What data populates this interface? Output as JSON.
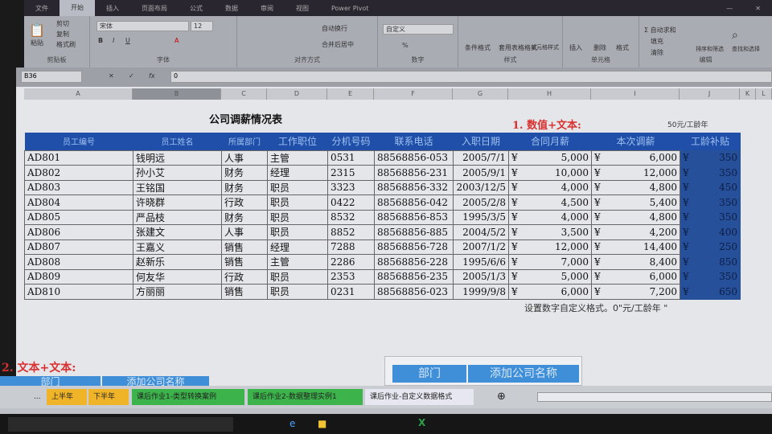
{
  "ribbon": {
    "tabs": [
      "文件",
      "开始",
      "插入",
      "页面布局",
      "公式",
      "数据",
      "审阅",
      "视图",
      "Power Pivot"
    ],
    "active_tab": "开始",
    "clipboard": {
      "paste": "粘贴",
      "cut": "剪切",
      "copy": "复制",
      "format_painter": "格式刷",
      "label": "剪贴板"
    },
    "font": {
      "name": "宋体",
      "size": "12",
      "label": "字体"
    },
    "alignment": {
      "wrap": "自动换行",
      "merge": "合并后居中",
      "label": "对齐方式"
    },
    "number": {
      "format": "自定义",
      "label": "数字"
    },
    "styles": {
      "conditional": "条件格式",
      "table": "套用表格格式",
      "cell": "单元格样式",
      "label": "样式"
    },
    "cells": {
      "insert": "插入",
      "delete": "删除",
      "format": "格式",
      "label": "单元格"
    },
    "editing": {
      "autosum": "自动求和",
      "fill": "填充",
      "clear": "清除",
      "sort": "排序和筛选",
      "find": "查找和选择",
      "label": "编辑"
    }
  },
  "formula_bar": {
    "name_box": "B36",
    "value": "0"
  },
  "columns": [
    "A",
    "B",
    "C",
    "D",
    "E",
    "F",
    "G",
    "H",
    "I",
    "J",
    "K",
    "L"
  ],
  "sheet": {
    "title": "公司调薪情况表",
    "note1": "1. 数值+文本:",
    "note_unit": "50元/工龄年",
    "headers": [
      "员工编号",
      "员工姓名",
      "所属部门",
      "工作职位",
      "分机号码",
      "联系电话",
      "入职日期",
      "合同月薪",
      "本次调薪",
      "工龄补贴"
    ],
    "rows": [
      [
        "AD801",
        "钱明远",
        "人事",
        "主管",
        "0531",
        "88568856-053",
        "2005/7/1",
        "5,000",
        "6,000",
        "350"
      ],
      [
        "AD802",
        "孙小艾",
        "财务",
        "经理",
        "2315",
        "88568856-231",
        "2005/9/1",
        "10,000",
        "12,000",
        "350"
      ],
      [
        "AD803",
        "王铭国",
        "财务",
        "职员",
        "3323",
        "88568856-332",
        "2003/12/5",
        "4,000",
        "4,800",
        "450"
      ],
      [
        "AD804",
        "许晓群",
        "行政",
        "职员",
        "0422",
        "88568856-042",
        "2005/2/8",
        "4,500",
        "5,400",
        "350"
      ],
      [
        "AD805",
        "严品枝",
        "财务",
        "职员",
        "8532",
        "88568856-853",
        "1995/3/5",
        "4,000",
        "4,800",
        "350"
      ],
      [
        "AD806",
        "张建文",
        "人事",
        "职员",
        "8852",
        "88568856-885",
        "2004/5/2",
        "3,500",
        "4,200",
        "400"
      ],
      [
        "AD807",
        "王嘉义",
        "销售",
        "经理",
        "7288",
        "88568856-728",
        "2007/1/2",
        "12,000",
        "14,400",
        "250"
      ],
      [
        "AD808",
        "赵新乐",
        "销售",
        "主管",
        "2286",
        "88568856-228",
        "1995/6/6",
        "7,000",
        "8,400",
        "850"
      ],
      [
        "AD809",
        "何友华",
        "行政",
        "职员",
        "2353",
        "88568856-235",
        "2005/1/3",
        "5,000",
        "6,000",
        "350"
      ],
      [
        "AD810",
        "方丽丽",
        "销售",
        "职员",
        "0231",
        "88568856-023",
        "1999/9/8",
        "6,000",
        "7,200",
        "650"
      ]
    ],
    "currency": "¥",
    "hint": "设置数字自定义格式。0\"元/工龄年 \"",
    "section2": "2. 文本+文本:",
    "sec2_cells": [
      "部门",
      "添加公司名称"
    ],
    "right_cells": [
      "部门",
      "添加公司名称"
    ]
  },
  "sheet_tabs": [
    {
      "label": "...",
      "color": "#c9ccd1"
    },
    {
      "label": "上半年",
      "color": "#f0b429"
    },
    {
      "label": "下半年",
      "color": "#f0b429"
    },
    {
      "label": "课后作业1-类型转换案例",
      "color": "#3cb44b"
    },
    {
      "label": "课后作业2-数据整理实例1",
      "color": "#3cb44b"
    },
    {
      "label": "课后作业-自定义数据格式",
      "color": "#e6e7f0",
      "active": true
    }
  ]
}
